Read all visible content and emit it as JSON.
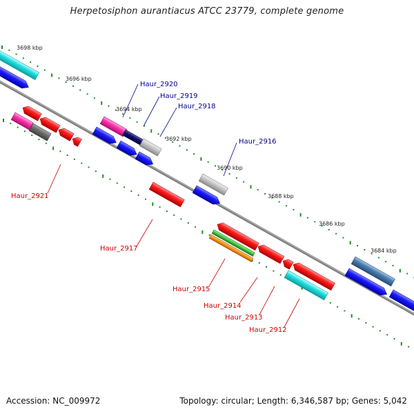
{
  "title": "Herpetosiphon aurantiacus ATCC 23779, complete genome",
  "accession_text": "Accession: NC_009972",
  "info_text": "Topology: circular; Length: 6,346,587 bp; Genes: 5,042",
  "scale_labels": [
    "3698 kbp",
    "3696 kbp",
    "3694 kbp",
    "3692 kbp",
    "3690 kbp",
    "3688 kbp",
    "3686 kbp",
    "3684 kbp"
  ],
  "forward_gene_labels": [
    "Haur_2920",
    "Haur_2919",
    "Haur_2918",
    "Haur_2916"
  ],
  "reverse_gene_labels": [
    "Haur_2921",
    "Haur_2917",
    "Haur_2915",
    "Haur_2914",
    "Haur_2913",
    "Haur_2912"
  ],
  "colors": {
    "forward_label": "#00008b",
    "reverse_label": "#cc0000",
    "tick": "#1e8c1e",
    "backbone": "#808080"
  }
}
